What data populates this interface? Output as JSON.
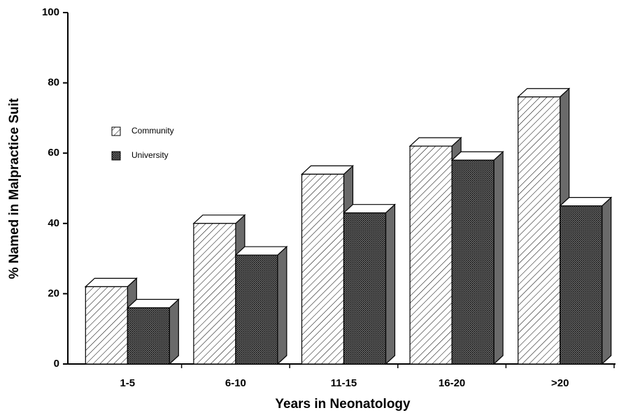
{
  "chart_data": {
    "type": "bar3d",
    "x_label": "Years in Neonatology",
    "y_label": "% Named in Malpractice Suit",
    "categories": [
      "1-5",
      "6-10",
      "11-15",
      "16-20",
      ">20"
    ],
    "series": [
      {
        "name": "Community",
        "color": "#ffffff",
        "pattern": "hatch",
        "values": [
          22,
          40,
          54,
          62,
          76
        ]
      },
      {
        "name": "University",
        "color": "#707070",
        "pattern": "dots",
        "values": [
          16,
          31,
          43,
          58,
          45
        ]
      }
    ],
    "ylim": [
      0,
      100
    ],
    "yticks": [
      0,
      20,
      40,
      60,
      80,
      100
    ]
  }
}
